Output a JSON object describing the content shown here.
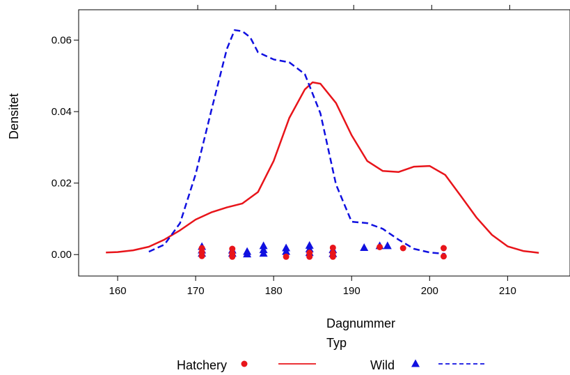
{
  "chart_data": {
    "type": "line",
    "title": "",
    "xlabel": "Dagnummer",
    "ylabel": "Densitet",
    "xlim": [
      155,
      218
    ],
    "ylim": [
      -0.006,
      0.0685
    ],
    "x_ticks": [
      160,
      170,
      180,
      190,
      200,
      210
    ],
    "x_tick_labels": [
      "160",
      "170",
      "180",
      "190",
      "200",
      "210"
    ],
    "x_top_ticks": [
      170,
      180,
      190,
      200,
      210
    ],
    "y_ticks": [
      0.0,
      0.02,
      0.04,
      0.06
    ],
    "y_tick_labels": [
      "0.00",
      "0.02",
      "0.04",
      "0.06"
    ],
    "grid": false,
    "legend": {
      "placement": "bottom",
      "title": "Typ",
      "entries": [
        "Hatchery",
        "Wild"
      ]
    },
    "series": [
      {
        "name": "Hatchery",
        "color": "#e8141a",
        "line_style": "solid",
        "marker": "circle",
        "x": [
          158.5,
          160,
          162,
          164,
          166,
          168,
          170,
          172,
          174,
          176,
          178,
          180,
          182,
          184,
          185,
          186,
          188,
          190,
          192,
          194,
          196,
          198,
          200,
          202,
          204,
          206,
          208,
          210,
          212,
          214
        ],
        "y": [
          0.0006,
          0.0007,
          0.0012,
          0.0022,
          0.0042,
          0.0068,
          0.0098,
          0.0118,
          0.0132,
          0.0143,
          0.0175,
          0.0262,
          0.0382,
          0.0462,
          0.0482,
          0.0478,
          0.0424,
          0.0334,
          0.0262,
          0.0234,
          0.0231,
          0.0246,
          0.0248,
          0.0223,
          0.0164,
          0.0104,
          0.0055,
          0.0023,
          0.001,
          0.0005
        ],
        "points": [
          {
            "x": 170.8,
            "y": 0.0018
          },
          {
            "x": 170.8,
            "y": 0.0007
          },
          {
            "x": 170.8,
            "y": -0.0004
          },
          {
            "x": 174.7,
            "y": 0.0016
          },
          {
            "x": 174.7,
            "y": 0.0003
          },
          {
            "x": 174.7,
            "y": -0.0006
          },
          {
            "x": 181.6,
            "y": -0.0006
          },
          {
            "x": 184.6,
            "y": 0.0005
          },
          {
            "x": 184.6,
            "y": -0.0006
          },
          {
            "x": 187.6,
            "y": 0.0019
          },
          {
            "x": 187.6,
            "y": 0.0004
          },
          {
            "x": 187.6,
            "y": -0.0006
          },
          {
            "x": 193.6,
            "y": 0.0021
          },
          {
            "x": 196.6,
            "y": 0.0018
          },
          {
            "x": 201.8,
            "y": 0.0018
          },
          {
            "x": 201.8,
            "y": -0.0005
          }
        ]
      },
      {
        "name": "Wild",
        "color": "#1010e0",
        "line_style": "dashed",
        "marker": "triangle",
        "x": [
          164,
          166,
          168,
          170,
          172,
          174,
          175,
          176,
          177,
          178,
          180,
          182,
          184,
          186,
          188,
          190,
          192,
          194,
          196,
          198,
          200,
          202
        ],
        "y": [
          0.0008,
          0.0028,
          0.0088,
          0.0225,
          0.0402,
          0.0575,
          0.0628,
          0.0625,
          0.0608,
          0.0566,
          0.0546,
          0.0538,
          0.0505,
          0.0395,
          0.0196,
          0.0092,
          0.0088,
          0.0072,
          0.0042,
          0.0016,
          0.0006,
          0.0002
        ],
        "points": [
          {
            "x": 170.8,
            "y": 0.0022
          },
          {
            "x": 170.8,
            "y": 0.0012
          },
          {
            "x": 170.8,
            "y": 0.0003
          },
          {
            "x": 174.7,
            "y": 0.0012
          },
          {
            "x": 174.7,
            "y": 0.0003
          },
          {
            "x": 176.6,
            "y": 0.0008
          },
          {
            "x": 176.6,
            "y": 0.0001
          },
          {
            "x": 178.7,
            "y": 0.0024
          },
          {
            "x": 178.7,
            "y": 0.0013
          },
          {
            "x": 178.7,
            "y": 0.0003
          },
          {
            "x": 181.6,
            "y": 0.0018
          },
          {
            "x": 181.6,
            "y": 0.0008
          },
          {
            "x": 184.6,
            "y": 0.0025
          },
          {
            "x": 184.6,
            "y": 0.0015
          },
          {
            "x": 184.6,
            "y": 0.0005
          },
          {
            "x": 187.6,
            "y": 0.0013
          },
          {
            "x": 187.6,
            "y": 0.0002
          },
          {
            "x": 191.6,
            "y": 0.0019
          },
          {
            "x": 193.6,
            "y": 0.0024
          },
          {
            "x": 194.6,
            "y": 0.0024
          }
        ]
      }
    ]
  }
}
